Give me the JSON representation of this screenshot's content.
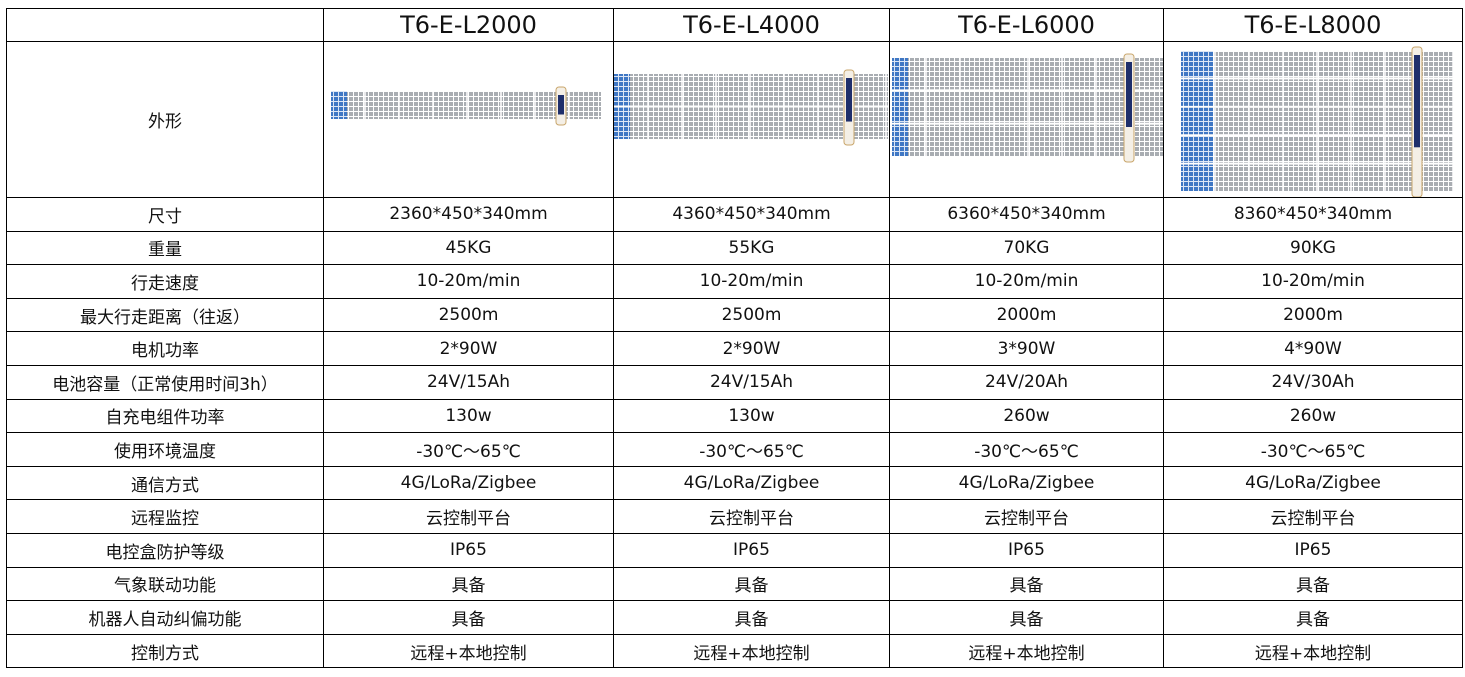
{
  "table": {
    "header": [
      "T6-E-L2000",
      "T6-E-L4000",
      "T6-E-L6000",
      "T6-E-L8000"
    ],
    "image_row_label": "外形",
    "rows": [
      [
        "尺寸",
        "2360*450*340mm",
        "4360*450*340mm",
        "6360*450*340mm",
        "8360*450*340mm"
      ],
      [
        "重量",
        "45KG",
        "55KG",
        "70KG",
        "90KG"
      ],
      [
        "行走速度",
        "10-20m/min",
        "10-20m/min",
        "10-20m/min",
        "10-20m/min"
      ],
      [
        "最大行走距离（往返）",
        "2500m",
        "2500m",
        "2000m",
        "2000m"
      ],
      [
        "电机功率",
        "2*90W",
        "2*90W",
        "3*90W",
        "4*90W"
      ],
      [
        "电池容量（正常使用时间3h）",
        "24V/15Ah",
        "24V/15Ah",
        "24V/20Ah",
        "24V/30Ah"
      ],
      [
        "自充电组件功率",
        "130w",
        "130w",
        "260w",
        "260w"
      ],
      [
        "使用环境温度",
        "-30℃～65℃",
        "-30℃～65℃",
        "-30℃～65℃",
        "-30℃～65℃"
      ],
      [
        "通信方式",
        "4G/LoRa/Zigbee",
        "4G/LoRa/Zigbee",
        "4G/LoRa/Zigbee",
        "4G/LoRa/Zigbee"
      ],
      [
        "远程监控",
        "云控制平台",
        "云控制平台",
        "云控制平台",
        "云控制平台"
      ],
      [
        "电控盒防护等级",
        "IP65",
        "IP65",
        "IP65",
        "IP65"
      ],
      [
        "气象联动功能",
        "具备",
        "具备",
        "具备",
        "具备"
      ],
      [
        "机器人自动纠偏功能",
        "具备",
        "具备",
        "具备",
        "具备"
      ],
      [
        "控制方式",
        "远程+本地控制",
        "远程+本地控制",
        "远程+本地控制",
        "远程+本地控制"
      ]
    ]
  }
}
